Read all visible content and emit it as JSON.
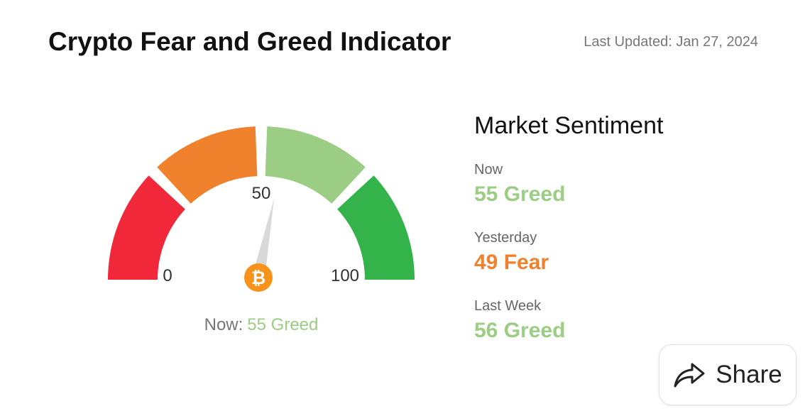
{
  "header": {
    "title": "Crypto Fear and Greed Indicator",
    "last_updated": "Last Updated: Jan 27, 2024"
  },
  "gauge": {
    "min_label": "0",
    "mid_label": "50",
    "max_label": "100",
    "value": 55,
    "now_label": "Now:",
    "now_value": "55 Greed",
    "segment_colors": [
      "#f0283a",
      "#f0812d",
      "#9bcd84",
      "#34b34a"
    ],
    "needle_color": "#d9d9d9",
    "icon": "bitcoin-icon",
    "icon_color": "#f7931a",
    "icon_glyph": "₿"
  },
  "sentiment": {
    "title": "Market Sentiment",
    "items": [
      {
        "label": "Now",
        "value": "55 Greed",
        "color": "#9bcd84"
      },
      {
        "label": "Yesterday",
        "value": "49 Fear",
        "color": "#f0812d"
      },
      {
        "label": "Last Week",
        "value": "56 Greed",
        "color": "#9bcd84"
      }
    ]
  },
  "share": {
    "label": "Share",
    "icon": "share-arrow-icon"
  }
}
